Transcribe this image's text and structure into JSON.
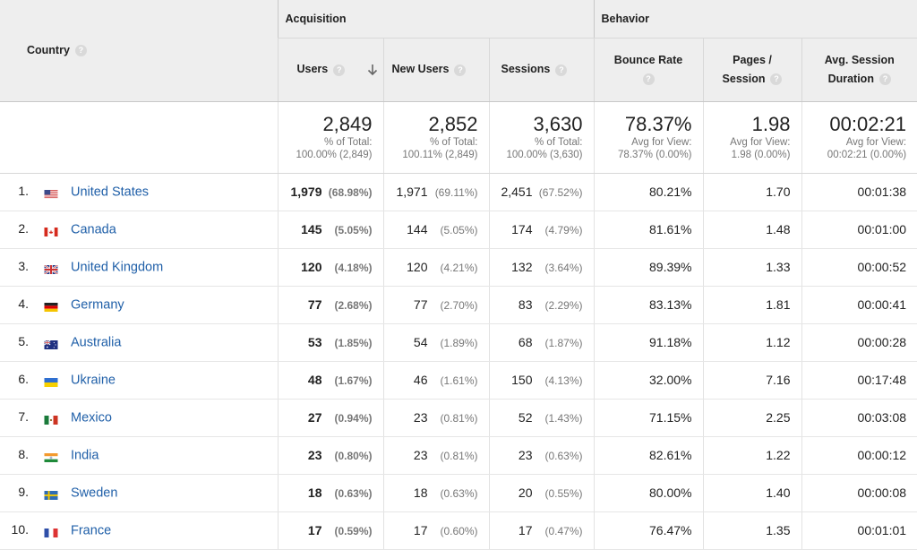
{
  "header": {
    "country": "Country",
    "groups": {
      "acquisition": "Acquisition",
      "behavior": "Behavior"
    },
    "columns": {
      "users": "Users",
      "new_users": "New Users",
      "sessions": "Sessions",
      "bounce_rate": "Bounce Rate",
      "pages_per_session_1": "Pages /",
      "pages_per_session_2": "Session",
      "avg_session_1": "Avg. Session",
      "avg_session_2": "Duration"
    },
    "help_glyph": "?"
  },
  "totals": {
    "users": {
      "value": "2,849",
      "l1": "% of Total:",
      "l2": "100.00% (2,849)"
    },
    "new_users": {
      "value": "2,852",
      "l1": "% of Total:",
      "l2": "100.11% (2,849)"
    },
    "sessions": {
      "value": "3,630",
      "l1": "% of Total:",
      "l2": "100.00% (3,630)"
    },
    "bounce_rate": {
      "value": "78.37%",
      "l1": "Avg for View:",
      "l2": "78.37% (0.00%)"
    },
    "pages": {
      "value": "1.98",
      "l1": "Avg for View:",
      "l2": "1.98 (0.00%)"
    },
    "duration": {
      "value": "00:02:21",
      "l1": "Avg for View:",
      "l2": "00:02:21 (0.00%)"
    }
  },
  "rows": [
    {
      "rank": "1.",
      "country": "United States",
      "flag": "us",
      "users": "1,979",
      "users_pct": "(68.98%)",
      "new_users": "1,971",
      "new_users_pct": "(69.11%)",
      "sessions": "2,451",
      "sessions_pct": "(67.52%)",
      "bounce": "80.21%",
      "pages": "1.70",
      "duration": "00:01:38"
    },
    {
      "rank": "2.",
      "country": "Canada",
      "flag": "ca",
      "users": "145",
      "users_pct": "(5.05%)",
      "new_users": "144",
      "new_users_pct": "(5.05%)",
      "sessions": "174",
      "sessions_pct": "(4.79%)",
      "bounce": "81.61%",
      "pages": "1.48",
      "duration": "00:01:00"
    },
    {
      "rank": "3.",
      "country": "United Kingdom",
      "flag": "gb",
      "users": "120",
      "users_pct": "(4.18%)",
      "new_users": "120",
      "new_users_pct": "(4.21%)",
      "sessions": "132",
      "sessions_pct": "(3.64%)",
      "bounce": "89.39%",
      "pages": "1.33",
      "duration": "00:00:52"
    },
    {
      "rank": "4.",
      "country": "Germany",
      "flag": "de",
      "users": "77",
      "users_pct": "(2.68%)",
      "new_users": "77",
      "new_users_pct": "(2.70%)",
      "sessions": "83",
      "sessions_pct": "(2.29%)",
      "bounce": "83.13%",
      "pages": "1.81",
      "duration": "00:00:41"
    },
    {
      "rank": "5.",
      "country": "Australia",
      "flag": "au",
      "users": "53",
      "users_pct": "(1.85%)",
      "new_users": "54",
      "new_users_pct": "(1.89%)",
      "sessions": "68",
      "sessions_pct": "(1.87%)",
      "bounce": "91.18%",
      "pages": "1.12",
      "duration": "00:00:28"
    },
    {
      "rank": "6.",
      "country": "Ukraine",
      "flag": "ua",
      "users": "48",
      "users_pct": "(1.67%)",
      "new_users": "46",
      "new_users_pct": "(1.61%)",
      "sessions": "150",
      "sessions_pct": "(4.13%)",
      "bounce": "32.00%",
      "pages": "7.16",
      "duration": "00:17:48"
    },
    {
      "rank": "7.",
      "country": "Mexico",
      "flag": "mx",
      "users": "27",
      "users_pct": "(0.94%)",
      "new_users": "23",
      "new_users_pct": "(0.81%)",
      "sessions": "52",
      "sessions_pct": "(1.43%)",
      "bounce": "71.15%",
      "pages": "2.25",
      "duration": "00:03:08"
    },
    {
      "rank": "8.",
      "country": "India",
      "flag": "in",
      "users": "23",
      "users_pct": "(0.80%)",
      "new_users": "23",
      "new_users_pct": "(0.81%)",
      "sessions": "23",
      "sessions_pct": "(0.63%)",
      "bounce": "82.61%",
      "pages": "1.22",
      "duration": "00:00:12"
    },
    {
      "rank": "9.",
      "country": "Sweden",
      "flag": "se",
      "users": "18",
      "users_pct": "(0.63%)",
      "new_users": "18",
      "new_users_pct": "(0.63%)",
      "sessions": "20",
      "sessions_pct": "(0.55%)",
      "bounce": "80.00%",
      "pages": "1.40",
      "duration": "00:00:08"
    },
    {
      "rank": "10.",
      "country": "France",
      "flag": "fr",
      "users": "17",
      "users_pct": "(0.59%)",
      "new_users": "17",
      "new_users_pct": "(0.60%)",
      "sessions": "17",
      "sessions_pct": "(0.47%)",
      "bounce": "76.47%",
      "pages": "1.35",
      "duration": "00:01:01"
    }
  ],
  "colors": {
    "link": "#1f5fa8",
    "header_bg": "#eeeeee",
    "muted": "#777777"
  }
}
